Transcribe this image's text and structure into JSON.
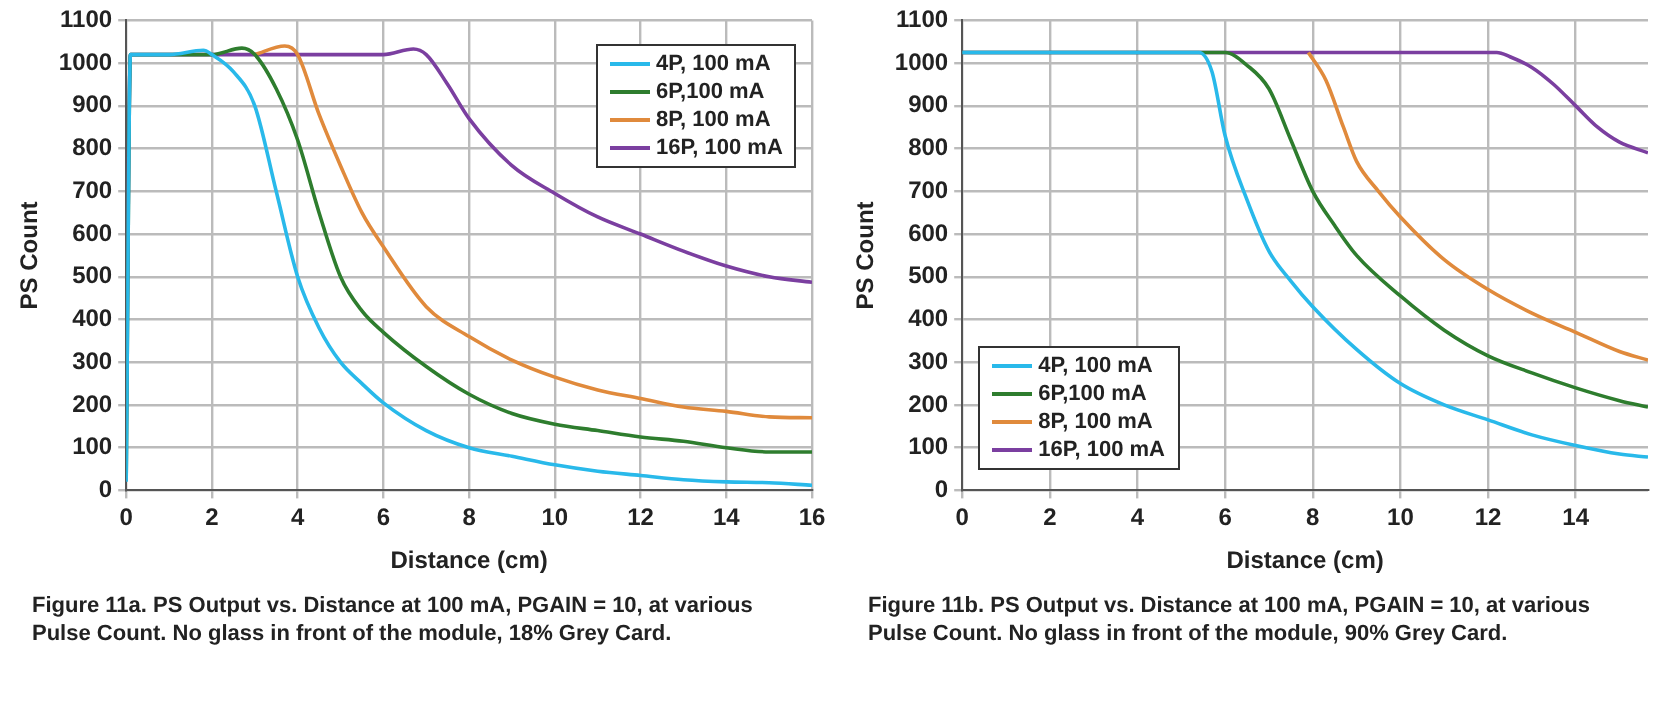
{
  "chart_data": [
    {
      "type": "line",
      "xlabel": "Distance (cm)",
      "ylabel": "PS Count",
      "xlim": [
        0,
        16
      ],
      "xticks": [
        0,
        2,
        4,
        6,
        8,
        10,
        12,
        14,
        16
      ],
      "ylim": [
        0,
        1100
      ],
      "yticks": [
        0,
        100,
        200,
        300,
        400,
        500,
        600,
        700,
        800,
        900,
        1000,
        1100
      ],
      "grid": true,
      "legend": "top right",
      "marker": "none",
      "line_style": "solid",
      "annotations": [
        "Figure 11a. PS Output vs. Distance at 100 mA, PGAIN = 10, at various Pulse Count. No glass in front of the module, 18% Grey Card."
      ],
      "series": [
        {
          "name": "4P, 100 mA",
          "color": "#29b9ea",
          "x": [
            0,
            0.1,
            1,
            1.8,
            2,
            2.5,
            3,
            3.5,
            4,
            4.5,
            5,
            5.5,
            6,
            7,
            8,
            9,
            10,
            11,
            12,
            13,
            14,
            15,
            16
          ],
          "values": [
            20,
            1020,
            1020,
            1030,
            1020,
            980,
            900,
            700,
            500,
            380,
            300,
            250,
            205,
            140,
            100,
            80,
            60,
            45,
            35,
            25,
            20,
            18,
            12
          ]
        },
        {
          "name": "6P,100 mA",
          "color": "#2e7d2e",
          "x": [
            0,
            0.1,
            1,
            2,
            2.7,
            3,
            3.5,
            4,
            4.5,
            5,
            5.5,
            6,
            7,
            8,
            9,
            10,
            11,
            12,
            13,
            14,
            15,
            16
          ],
          "values": [
            30,
            1020,
            1020,
            1020,
            1035,
            1020,
            940,
            820,
            650,
            500,
            420,
            370,
            290,
            225,
            180,
            155,
            140,
            125,
            115,
            100,
            90,
            90
          ]
        },
        {
          "name": "8P, 100 mA",
          "color": "#e08a3c",
          "x": [
            3,
            3.7,
            4,
            4.5,
            5,
            5.5,
            6,
            7,
            8,
            9,
            10,
            11,
            12,
            13,
            14,
            15,
            16
          ],
          "values": [
            1020,
            1040,
            1020,
            880,
            760,
            650,
            570,
            430,
            360,
            305,
            265,
            235,
            215,
            195,
            185,
            172,
            170
          ]
        },
        {
          "name": "16P, 100 mA",
          "color": "#7b3fa0",
          "x": [
            0,
            0.1,
            1,
            6,
            6.7,
            7,
            7.5,
            8,
            9,
            10,
            11,
            12,
            13,
            14,
            15,
            16
          ],
          "values": [
            150,
            1020,
            1020,
            1020,
            1033,
            1020,
            950,
            870,
            760,
            695,
            640,
            600,
            560,
            525,
            500,
            487
          ]
        }
      ]
    },
    {
      "type": "line",
      "xlabel": "Distance (cm)",
      "ylabel": "PS Count",
      "xlim": [
        0,
        15.65
      ],
      "xticks": [
        0,
        2,
        4,
        6,
        8,
        10,
        12,
        14
      ],
      "ylim": [
        0,
        1100
      ],
      "yticks": [
        0,
        100,
        200,
        300,
        400,
        500,
        600,
        700,
        800,
        900,
        1000,
        1100
      ],
      "grid": true,
      "legend": "bottom left",
      "marker": "none",
      "line_style": "solid",
      "annotations": [
        "Figure 11b. PS Output vs. Distance at 100 mA, PGAIN = 10, at various Pulse Count. No glass in front of the module, 90% Grey Card."
      ],
      "series": [
        {
          "name": "4P, 100 mA",
          "color": "#29b9ea",
          "x": [
            0,
            5.4,
            5.7,
            6,
            6.5,
            7,
            7.5,
            8,
            9,
            10,
            11,
            12,
            13,
            14,
            15,
            15.65
          ],
          "values": [
            1025,
            1025,
            980,
            830,
            680,
            560,
            490,
            430,
            330,
            250,
            200,
            165,
            130,
            105,
            85,
            78
          ]
        },
        {
          "name": "6P,100 mA",
          "color": "#2e7d2e",
          "x": [
            0,
            6,
            6.5,
            7,
            7.5,
            8,
            8.5,
            9,
            10,
            11,
            12,
            13,
            14,
            15,
            15.65
          ],
          "values": [
            1025,
            1025,
            995,
            940,
            820,
            700,
            620,
            550,
            455,
            375,
            315,
            275,
            240,
            210,
            195
          ]
        },
        {
          "name": "8P, 100 mA",
          "color": "#e08a3c",
          "x": [
            7.9,
            8.3,
            8.7,
            9,
            9.5,
            10,
            11,
            12,
            13,
            14,
            15,
            15.65
          ],
          "values": [
            1025,
            960,
            850,
            770,
            700,
            640,
            540,
            470,
            415,
            370,
            325,
            305
          ]
        },
        {
          "name": "16P, 100 mA",
          "color": "#7b3fa0",
          "x": [
            0,
            12.2,
            12.5,
            13,
            13.5,
            14,
            14.5,
            15,
            15.65
          ],
          "values": [
            1025,
            1025,
            1015,
            990,
            950,
            900,
            850,
            815,
            790
          ]
        }
      ]
    }
  ]
}
